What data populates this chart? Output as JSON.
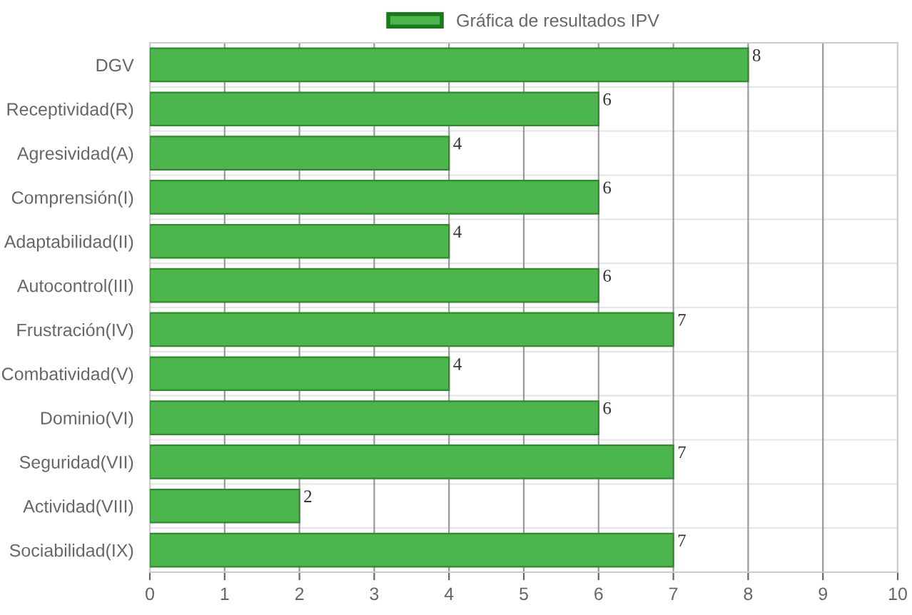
{
  "chart_data": {
    "type": "bar",
    "orientation": "horizontal",
    "categories": [
      "DGV",
      "Receptividad(R)",
      "Agresividad(A)",
      "Comprensión(I)",
      "Adaptabilidad(II)",
      "Autocontrol(III)",
      "Frustración(IV)",
      "Combatividad(V)",
      "Dominio(VI)",
      "Seguridad(VII)",
      "Actividad(VIII)",
      "Sociabilidad(IX)"
    ],
    "series": [
      {
        "name": "Gráfica de resultados IPV",
        "color": "#4cb54c",
        "values": [
          8,
          6,
          4,
          6,
          4,
          6,
          7,
          4,
          6,
          7,
          2,
          7
        ]
      }
    ],
    "xlim": [
      0,
      10
    ],
    "xticks": [
      0,
      1,
      2,
      3,
      4,
      5,
      6,
      7,
      8,
      9,
      10
    ],
    "grid": true,
    "legend": "top",
    "data_labels": true
  }
}
